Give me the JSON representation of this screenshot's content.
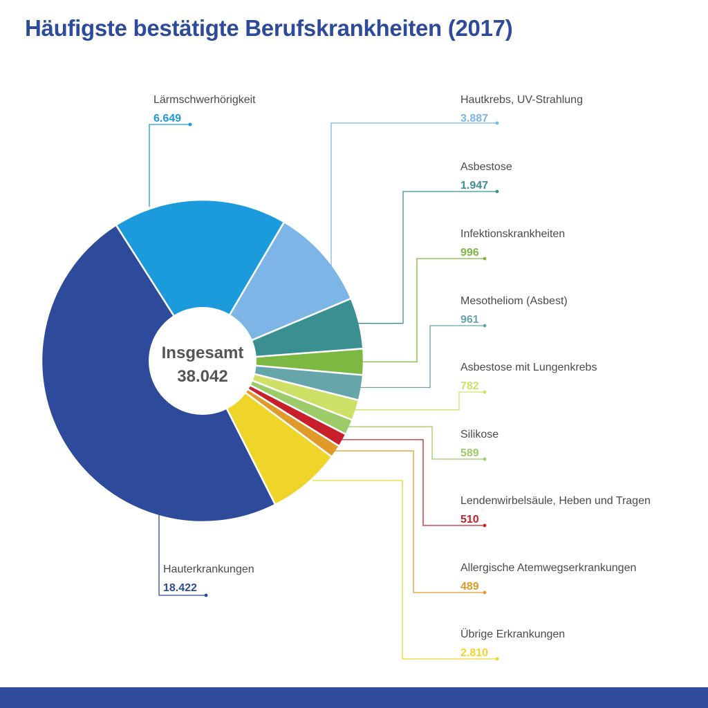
{
  "title": "Häufigste bestätigte Berufskrankheiten (2017)",
  "chart_data": {
    "type": "pie",
    "title": "Häufigste bestätigte Berufskrankheiten (2017)",
    "center_label": "Insgesamt",
    "total": "38.042",
    "slices": [
      {
        "name": "Lärmschwerhörigkeit",
        "value": 6649,
        "label": "6.649",
        "color": "#1b9bdb"
      },
      {
        "name": "Hautkrebs, UV-Strahlung",
        "value": 3887,
        "label": "3.887",
        "color": "#7db5e6"
      },
      {
        "name": "Asbestose",
        "value": 1947,
        "label": "1.947",
        "color": "#3a9090"
      },
      {
        "name": "Infektionskrankheiten",
        "value": 996,
        "label": "996",
        "color": "#7cb842"
      },
      {
        "name": "Mesotheliom (Asbest)",
        "value": 961,
        "label": "961",
        "color": "#66a5a9"
      },
      {
        "name": "Asbestose mit Lungenkrebs",
        "value": 782,
        "label": "782",
        "color": "#cfe066"
      },
      {
        "name": "Silikose",
        "value": 589,
        "label": "589",
        "color": "#9ecb6a"
      },
      {
        "name": "Lendenwirbelsäule, Heben und Tragen",
        "value": 510,
        "label": "510",
        "color": "#c8202a"
      },
      {
        "name": "Allergische Atemwegserkrankungen",
        "value": 489,
        "label": "489",
        "color": "#e09a2a"
      },
      {
        "name": "Übrige Erkrankungen",
        "value": 2810,
        "label": "2.810",
        "color": "#efd52a"
      },
      {
        "name": "Hauterkrankungen",
        "value": 18422,
        "label": "18.422",
        "color": "#2e4a9a"
      }
    ]
  }
}
